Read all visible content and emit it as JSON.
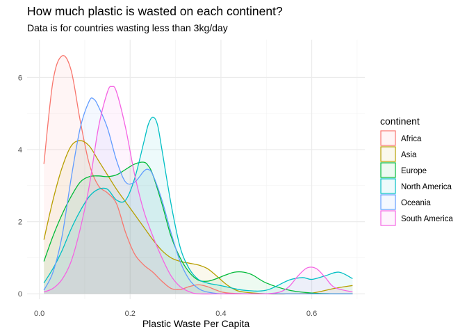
{
  "chart_data": {
    "type": "area",
    "title": "How much plastic is wasted on each continent?",
    "subtitle": "Data is for countries wasting less than 3kg/day",
    "xlabel": "Plastic Waste Per Capita",
    "ylabel": "",
    "xlim": [
      -0.027,
      0.717
    ],
    "ylim": [
      -0.15,
      7.05
    ],
    "x_ticks": [
      0.0,
      0.2,
      0.4,
      0.6
    ],
    "x_tick_labels": [
      "0.0",
      "0.2",
      "0.4",
      "0.6"
    ],
    "y_ticks": [
      0,
      2,
      4,
      6
    ],
    "y_tick_labels": [
      "0",
      "2",
      "4",
      "6"
    ],
    "grid": true,
    "legend_title": "continent",
    "legend_position": "right",
    "series": [
      {
        "name": "Africa",
        "color": "#F8766D",
        "x": [
          0.01,
          0.03,
          0.05,
          0.07,
          0.09,
          0.11,
          0.13,
          0.15,
          0.17,
          0.19,
          0.21,
          0.23,
          0.25,
          0.27,
          0.29,
          0.31,
          0.33,
          0.35,
          0.37,
          0.39,
          0.41,
          0.45,
          0.5,
          0.55,
          0.6,
          0.65,
          0.69
        ],
        "y": [
          3.6,
          5.9,
          6.6,
          6.2,
          4.8,
          3.6,
          3.0,
          2.8,
          2.5,
          1.7,
          1.1,
          0.8,
          0.6,
          0.35,
          0.15,
          0.12,
          0.2,
          0.25,
          0.2,
          0.1,
          0.03,
          0.0,
          0.0,
          0.0,
          0.0,
          0.0,
          0.0
        ]
      },
      {
        "name": "Asia",
        "color": "#B79F00",
        "x": [
          0.01,
          0.03,
          0.05,
          0.07,
          0.09,
          0.11,
          0.13,
          0.15,
          0.17,
          0.19,
          0.21,
          0.23,
          0.25,
          0.27,
          0.29,
          0.31,
          0.33,
          0.35,
          0.37,
          0.39,
          0.41,
          0.43,
          0.45,
          0.5,
          0.55,
          0.6,
          0.65,
          0.69
        ],
        "y": [
          1.5,
          2.6,
          3.5,
          4.1,
          4.25,
          4.1,
          3.7,
          3.3,
          2.9,
          2.55,
          2.2,
          1.85,
          1.5,
          1.2,
          1.0,
          0.9,
          0.85,
          0.8,
          0.7,
          0.5,
          0.28,
          0.12,
          0.05,
          0.0,
          0.0,
          0.02,
          0.15,
          0.23
        ]
      },
      {
        "name": "Europe",
        "color": "#00BA38",
        "x": [
          0.01,
          0.03,
          0.05,
          0.07,
          0.09,
          0.11,
          0.13,
          0.15,
          0.17,
          0.19,
          0.21,
          0.23,
          0.24,
          0.25,
          0.27,
          0.29,
          0.31,
          0.33,
          0.35,
          0.37,
          0.39,
          0.41,
          0.43,
          0.45,
          0.47,
          0.5,
          0.55,
          0.6,
          0.65,
          0.69
        ],
        "y": [
          0.9,
          1.6,
          2.2,
          2.7,
          3.1,
          3.25,
          3.27,
          3.25,
          3.3,
          3.45,
          3.6,
          3.65,
          3.55,
          3.3,
          2.5,
          1.6,
          1.0,
          0.6,
          0.38,
          0.35,
          0.42,
          0.52,
          0.6,
          0.6,
          0.52,
          0.3,
          0.1,
          0.02,
          0.0,
          0.0
        ]
      },
      {
        "name": "North America",
        "color": "#00BFC4",
        "x": [
          0.01,
          0.03,
          0.05,
          0.07,
          0.09,
          0.11,
          0.13,
          0.15,
          0.17,
          0.19,
          0.21,
          0.23,
          0.24,
          0.25,
          0.26,
          0.27,
          0.29,
          0.31,
          0.33,
          0.35,
          0.37,
          0.39,
          0.41,
          0.45,
          0.5,
          0.55,
          0.58,
          0.6,
          0.63,
          0.66,
          0.69
        ],
        "y": [
          0.3,
          0.7,
          1.2,
          1.8,
          2.3,
          2.7,
          2.9,
          2.9,
          2.6,
          2.6,
          3.2,
          4.2,
          4.7,
          4.9,
          4.7,
          4.0,
          2.5,
          1.3,
          0.7,
          0.4,
          0.3,
          0.25,
          0.2,
          0.1,
          0.1,
          0.38,
          0.45,
          0.4,
          0.5,
          0.6,
          0.42
        ]
      },
      {
        "name": "Oceania",
        "color": "#619CFF",
        "x": [
          0.01,
          0.03,
          0.05,
          0.07,
          0.09,
          0.11,
          0.12,
          0.13,
          0.15,
          0.17,
          0.19,
          0.21,
          0.23,
          0.24,
          0.25,
          0.27,
          0.29,
          0.31,
          0.33,
          0.35,
          0.37,
          0.4,
          0.45,
          0.5,
          0.55,
          0.6,
          0.65,
          0.69
        ],
        "y": [
          0.1,
          0.6,
          1.6,
          3.2,
          4.6,
          5.35,
          5.4,
          5.2,
          4.6,
          3.7,
          3.1,
          3.1,
          3.4,
          3.45,
          3.3,
          2.6,
          1.7,
          0.9,
          0.4,
          0.15,
          0.05,
          0.0,
          0.0,
          0.0,
          0.0,
          0.0,
          0.0,
          0.0
        ]
      },
      {
        "name": "South America",
        "color": "#F564E3",
        "x": [
          0.01,
          0.03,
          0.05,
          0.07,
          0.09,
          0.11,
          0.13,
          0.15,
          0.16,
          0.17,
          0.19,
          0.21,
          0.23,
          0.25,
          0.27,
          0.29,
          0.31,
          0.33,
          0.35,
          0.4,
          0.45,
          0.5,
          0.53,
          0.55,
          0.57,
          0.59,
          0.61,
          0.63,
          0.65,
          0.69
        ],
        "y": [
          0.05,
          0.15,
          0.4,
          0.9,
          1.8,
          3.0,
          4.6,
          5.6,
          5.75,
          5.6,
          4.6,
          3.3,
          2.3,
          1.6,
          1.0,
          0.5,
          0.2,
          0.06,
          0.0,
          0.0,
          0.0,
          0.0,
          0.05,
          0.2,
          0.5,
          0.72,
          0.7,
          0.45,
          0.18,
          0.05
        ]
      }
    ]
  }
}
